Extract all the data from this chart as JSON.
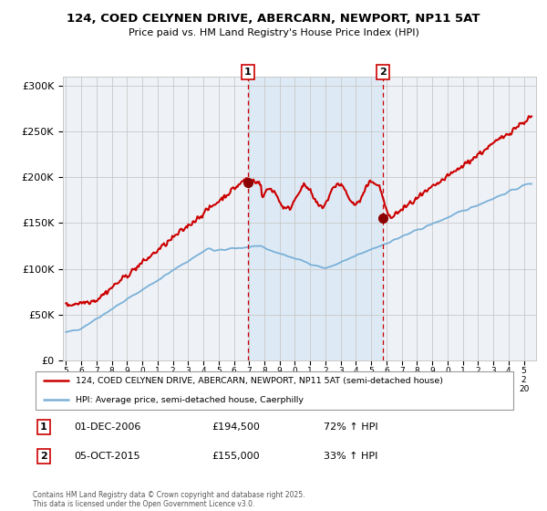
{
  "title": "124, COED CELYNEN DRIVE, ABERCARN, NEWPORT, NP11 5AT",
  "subtitle": "Price paid vs. HM Land Registry's House Price Index (HPI)",
  "legend_line1": "124, COED CELYNEN DRIVE, ABERCARN, NEWPORT, NP11 5AT (semi-detached house)",
  "legend_line2": "HPI: Average price, semi-detached house, Caerphilly",
  "annotation1_date": "01-DEC-2006",
  "annotation1_price": "£194,500",
  "annotation1_hpi": "72% ↑ HPI",
  "annotation2_date": "05-OCT-2015",
  "annotation2_price": "£155,000",
  "annotation2_hpi": "33% ↑ HPI",
  "footer": "Contains HM Land Registry data © Crown copyright and database right 2025.\nThis data is licensed under the Open Government Licence v3.0.",
  "hpi_color": "#7ab0d8",
  "price_color": "#cc0000",
  "marker_color": "#8b0000",
  "vline_color": "#cc0000",
  "shade_color": "#ddeaf5",
  "background_color": "#eef2f7",
  "grid_color": "#c8c8c8",
  "ylim": [
    0,
    310000
  ],
  "yticks": [
    0,
    50000,
    100000,
    150000,
    200000,
    250000,
    300000
  ],
  "sale1_x": 2006.92,
  "sale1_y": 194500,
  "sale2_x": 2015.76,
  "sale2_y": 155000,
  "xmin": 1994.8,
  "xmax": 2025.8
}
